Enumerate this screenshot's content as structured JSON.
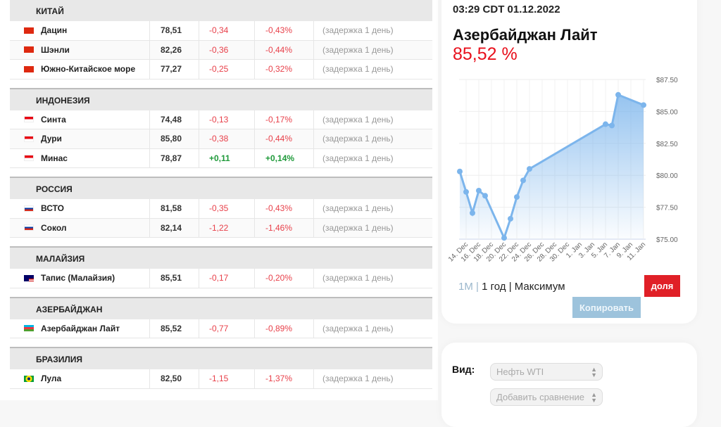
{
  "groups": [
    {
      "country": "КИТАЙ",
      "rows": [
        {
          "flag": "china",
          "name": "Дацин",
          "price": "78,51",
          "change": "-0,34",
          "pct": "-0,43%",
          "delay": "(задержка 1 день)"
        },
        {
          "flag": "china",
          "name": "Шэнли",
          "price": "82,26",
          "change": "-0,36",
          "pct": "-0,44%",
          "delay": "(задержка 1 день)"
        },
        {
          "flag": "china",
          "name": "Южно-Китайское море",
          "price": "77,27",
          "change": "-0,25",
          "pct": "-0,32%",
          "delay": "(задержка 1 день)"
        }
      ]
    },
    {
      "country": "ИНДОНЕЗИЯ",
      "rows": [
        {
          "flag": "indonesia",
          "name": "Синта",
          "price": "74,48",
          "change": "-0,13",
          "pct": "-0,17%",
          "delay": "(задержка 1 день)"
        },
        {
          "flag": "indonesia",
          "name": "Дури",
          "price": "85,80",
          "change": "-0,38",
          "pct": "-0,44%",
          "delay": "(задержка 1 день)"
        },
        {
          "flag": "indonesia",
          "name": "Минас",
          "price": "78,87",
          "change": "+0,11",
          "pct": "+0,14%",
          "delay": "(задержка 1 день)"
        }
      ]
    },
    {
      "country": "РОССИЯ",
      "rows": [
        {
          "flag": "russia",
          "name": "ВСТО",
          "price": "81,58",
          "change": "-0,35",
          "pct": "-0,43%",
          "delay": "(задержка 1 день)"
        },
        {
          "flag": "russia",
          "name": "Сокол",
          "price": "82,14",
          "change": "-1,22",
          "pct": "-1,46%",
          "delay": "(задержка 1 день)"
        }
      ]
    },
    {
      "country": "МАЛАЙЗИЯ",
      "rows": [
        {
          "flag": "malaysia",
          "name": "Тапис (Малайзия)",
          "price": "85,51",
          "change": "-0,17",
          "pct": "-0,20%",
          "delay": "(задержка 1 день)"
        }
      ]
    },
    {
      "country": "АЗЕРБАЙДЖАН",
      "rows": [
        {
          "flag": "azerbaijan",
          "name": "Азербайджан Лайт",
          "price": "85,52",
          "change": "-0,77",
          "pct": "-0,89%",
          "delay": "(задержка 1 день)"
        }
      ]
    },
    {
      "country": "БРАЗИЛИЯ",
      "rows": [
        {
          "flag": "brazil",
          "name": "Лула",
          "price": "82,50",
          "change": "-1,15",
          "pct": "-1,37%",
          "delay": "(задержка 1 день)"
        }
      ]
    }
  ],
  "panel": {
    "time": "03:29 CDT 01.12.2022",
    "title": "Азербайджан Лайт",
    "value": "85,52 %",
    "ranges": [
      "1M",
      "1 год",
      "Максимум"
    ],
    "separator": "|",
    "share_label": "доля",
    "copy_label": "Копировать"
  },
  "filters": {
    "label": "Вид:",
    "type_value": "Нефть WTI",
    "compare_placeholder": "Добавить сравнение"
  },
  "colors": {
    "negative": "#e8404a",
    "positive": "#1f9a3a",
    "accent": "#e02027",
    "line": "#7cb5ec"
  },
  "chart_data": {
    "type": "area",
    "x": [
      "13 Dec",
      "14 Dec",
      "15 Dec",
      "16 Dec",
      "17 Dec",
      "20 Dec",
      "21 Dec",
      "22 Dec",
      "23 Dec",
      "24 Dec",
      "5 Jan",
      "6 Jan",
      "7 Jan",
      "11 Jan"
    ],
    "values": [
      80.3,
      78.7,
      77.05,
      78.8,
      78.4,
      75.1,
      76.6,
      78.3,
      79.6,
      80.5,
      84.0,
      83.9,
      86.3,
      85.5
    ],
    "ylim": [
      75,
      87.5
    ],
    "yticks": [
      "$75.00",
      "$77.50",
      "$80.00",
      "$82.50",
      "$85.00",
      "$87.50"
    ],
    "xticks": [
      "14. Dec",
      "16. Dec",
      "18. Dec",
      "20. Dec",
      "22. Dec",
      "24. Dec",
      "26. Dec",
      "28. Dec",
      "30. Dec",
      "1. Jan",
      "3. Jan",
      "5. Jan",
      "7. Jan",
      "9. Jan",
      "11. Jan"
    ],
    "grid": true
  }
}
